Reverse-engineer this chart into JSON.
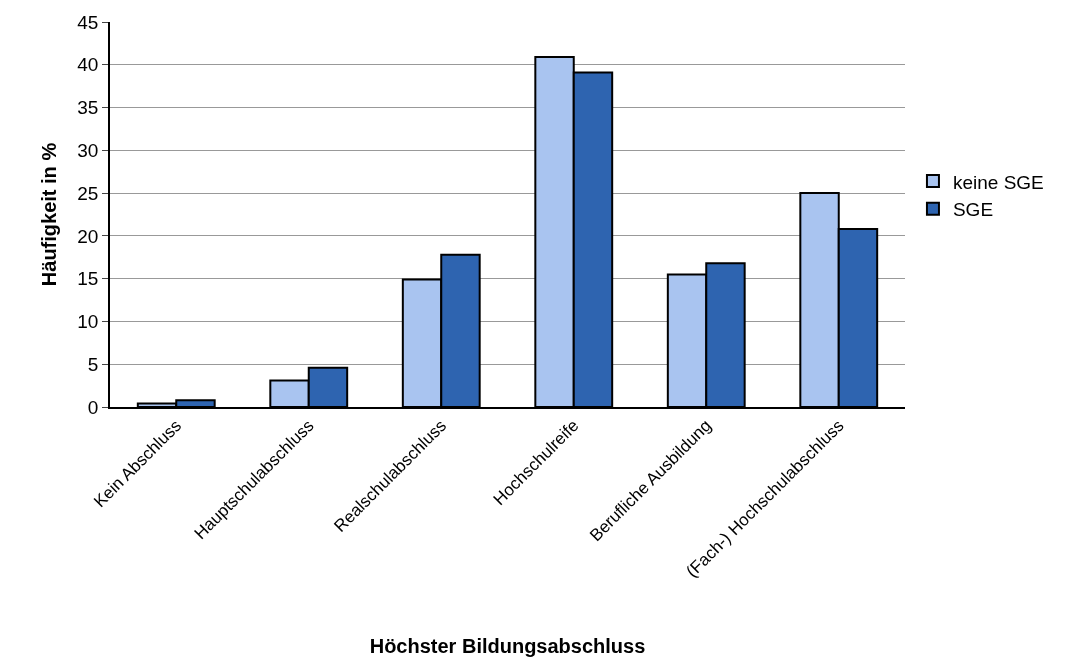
{
  "chart_data": {
    "type": "bar",
    "xlabel": "Höchster Bildungsabschluss",
    "ylabel": "Häufigkeit in %",
    "categories": [
      "Kein Abschluss",
      "Hauptschulabschluss",
      "Realschulabschluss",
      "Hochschulreife",
      "Berufliche Ausbildung",
      "(Fach-) Hochschulabschluss"
    ],
    "series": [
      {
        "name": "keine SGE",
        "color": "#a9c4f0",
        "values": [
          0.4,
          3.1,
          14.9,
          40.9,
          15.5,
          25.0
        ]
      },
      {
        "name": "SGE",
        "color": "#2e64b0",
        "values": [
          0.8,
          4.6,
          17.8,
          39.1,
          16.8,
          20.8
        ]
      }
    ],
    "ylim": [
      0,
      45
    ],
    "yticks": [
      0,
      5,
      10,
      15,
      20,
      25,
      30,
      35,
      40,
      45
    ],
    "grid": "y",
    "legend": "right"
  }
}
